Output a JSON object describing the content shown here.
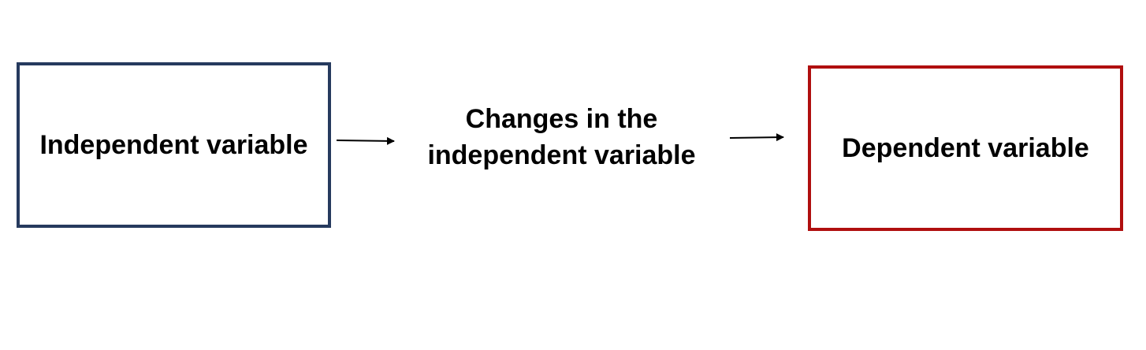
{
  "diagram": {
    "nodes": {
      "independent": {
        "label": "Independent variable",
        "border_color": "#263a5e"
      },
      "middle": {
        "line1": "Changes in the",
        "line2": "independent variable"
      },
      "dependent": {
        "label": "Dependent variable",
        "border_color": "#b00f0f"
      }
    },
    "arrow_color": "#000000"
  }
}
